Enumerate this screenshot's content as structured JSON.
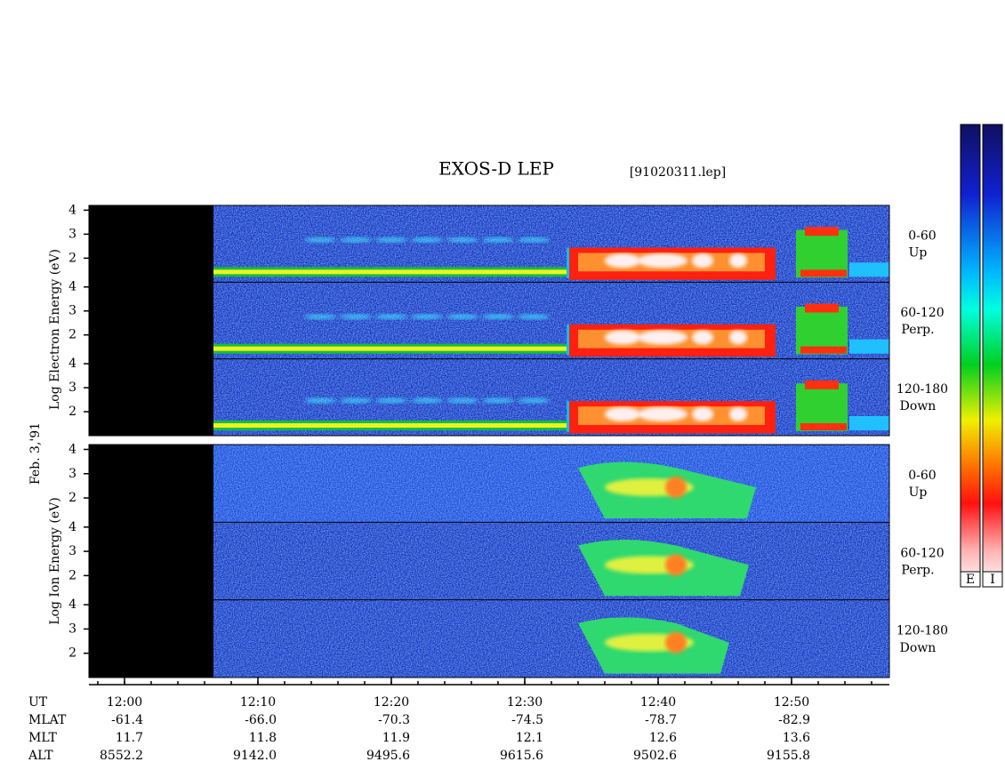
{
  "title": "EXOS-D LEP",
  "file": "[91020311.lep]",
  "date": "Feb. 3,'91",
  "ylim": [
    1,
    4.2
  ],
  "yticks": [
    2,
    3,
    4
  ],
  "groups": [
    {
      "axis_label": "Log Electron Energy (eV)",
      "panels": [
        {
          "angle": "0-60",
          "direction": "Up"
        },
        {
          "angle": "60-120",
          "direction": "Perp."
        },
        {
          "angle": "120-180",
          "direction": "Down"
        }
      ]
    },
    {
      "axis_label": "Log Ion Energy (eV)",
      "panels": [
        {
          "angle": "0-60",
          "direction": "Up"
        },
        {
          "angle": "60-120",
          "direction": "Perp."
        },
        {
          "angle": "120-180",
          "direction": "Down"
        }
      ]
    }
  ],
  "time_axis": {
    "label": "UT",
    "xlim": [
      717.333,
      777.333
    ],
    "ticks": [
      {
        "value": 720,
        "label": "12:00"
      },
      {
        "value": 730,
        "label": "12:10"
      },
      {
        "value": 740,
        "label": "12:20"
      },
      {
        "value": 750,
        "label": "12:30"
      },
      {
        "value": 760,
        "label": "12:40"
      },
      {
        "value": 770,
        "label": "12:50"
      }
    ]
  },
  "ephemeris": [
    {
      "name": "MLAT",
      "values": [
        "-61.4",
        "-66.0",
        "-70.3",
        "-74.5",
        "-78.7",
        "-82.9"
      ]
    },
    {
      "name": "MLT",
      "values": [
        "11.7",
        "11.8",
        "11.9",
        "12.1",
        "12.6",
        "13.6"
      ]
    },
    {
      "name": "ALT",
      "values": [
        "8552.2",
        "9142.0",
        "9495.6",
        "9615.6",
        "9502.6",
        "9155.8"
      ]
    }
  ],
  "colorbars": [
    "E",
    "I"
  ]
}
